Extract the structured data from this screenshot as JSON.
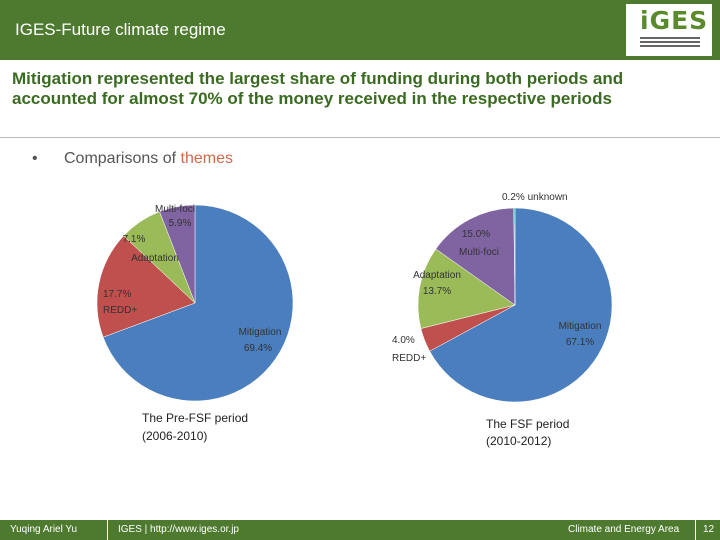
{
  "header": {
    "title": "IGES-Future climate regime",
    "logo_text": "iGES"
  },
  "headline": "Mitigation represented the largest share of funding during both periods and accounted for almost 70% of the money received in the respective periods",
  "bullet": {
    "marker": "•",
    "prefix": "Comparisons of ",
    "highlight": "themes"
  },
  "chart_data": [
    {
      "type": "pie",
      "title": "The Pre-FSF period (2006-2010)",
      "title_lines": [
        "The Pre-FSF period",
        "(2006-2010)"
      ],
      "slices": [
        {
          "label": "Mitigation",
          "pct_label": "69.4%",
          "value": 69.4,
          "color": "#4a7ebf"
        },
        {
          "label": "REDD+",
          "pct_label": "17.7%",
          "value": 17.7,
          "color": "#c0504d"
        },
        {
          "label": "Adaptation",
          "pct_label": "7.1%",
          "value": 7.1,
          "color": "#9bbb59"
        },
        {
          "label": "Multi-foci",
          "pct_label": "5.9%",
          "value": 5.9,
          "color": "#8064a2"
        }
      ]
    },
    {
      "type": "pie",
      "title": "The FSF period (2010-2012)",
      "title_lines": [
        "The FSF period",
        "(2010-2012)"
      ],
      "slices": [
        {
          "label": "Mitigation",
          "pct_label": "67.1%",
          "value": 67.1,
          "color": "#4a7ebf"
        },
        {
          "label": "REDD+",
          "pct_label": "4.0%",
          "value": 4.0,
          "color": "#c0504d"
        },
        {
          "label": "Adaptation",
          "pct_label": "13.7%",
          "value": 13.7,
          "color": "#9bbb59"
        },
        {
          "label": "Multi-foci",
          "pct_label": "15.0%",
          "value": 15.0,
          "color": "#8064a2"
        },
        {
          "label": "unknown",
          "pct_label": "0.2%",
          "value": 0.2,
          "color": "#4bacc6"
        }
      ],
      "unknown_text": "0.2% unknown"
    }
  ],
  "footer": {
    "author": "Yuqing Ariel Yu",
    "site": "IGES | http://www.iges.or.jp",
    "area": "Climate and Energy Area",
    "page": "12"
  }
}
